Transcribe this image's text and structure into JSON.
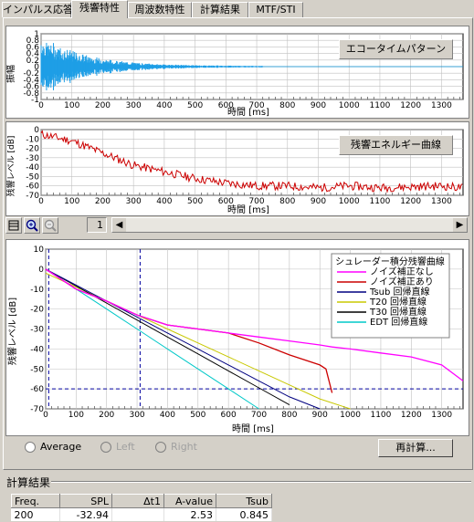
{
  "tabs": [
    {
      "label": "インパルス応答",
      "active": false
    },
    {
      "label": "残響特性",
      "active": true
    },
    {
      "label": "周波数特性",
      "active": false
    },
    {
      "label": "計算結果",
      "active": false
    },
    {
      "label": "MTF/STI",
      "active": false
    }
  ],
  "echo_chart": {
    "button_label": "エコータイムパターン",
    "ylabel": "振幅",
    "xlabel": "時間 [ms]",
    "yticks": [
      "1",
      "0.8",
      "0.6",
      "0.4",
      "0.2",
      "0",
      "-0.2",
      "-0.4",
      "-0.6",
      "-0.8",
      "-1"
    ],
    "xticks": [
      "0",
      "100",
      "200",
      "300",
      "400",
      "500",
      "600",
      "700",
      "800",
      "900",
      "1000",
      "1100",
      "1200",
      "1300"
    ]
  },
  "energy_chart": {
    "button_label": "残響エネルギー曲線",
    "ylabel": "残響レベル [dB]",
    "xlabel": "時間 [ms]",
    "yticks": [
      "0",
      "-10",
      "-20",
      "-30",
      "-40",
      "-50",
      "-60",
      "-70"
    ],
    "xticks": [
      "0",
      "100",
      "200",
      "300",
      "400",
      "500",
      "600",
      "700",
      "800",
      "900",
      "1000",
      "1100",
      "1200",
      "1300"
    ]
  },
  "toolbar": {
    "page": "1"
  },
  "decay_chart": {
    "ylabel": "残響レベル [dB]",
    "xlabel": "時間 [ms]",
    "yticks": [
      "10",
      "0",
      "-10",
      "-20",
      "-30",
      "-40",
      "-50",
      "-60",
      "-70"
    ],
    "xticks": [
      "0",
      "100",
      "200",
      "300",
      "400",
      "500",
      "600",
      "700",
      "800",
      "900",
      "1000",
      "1100",
      "1200",
      "1300"
    ],
    "legend_title": "シュレーダー積分残響曲線",
    "legend": [
      {
        "label": "ノイズ補正なし",
        "color": "#ff00ff"
      },
      {
        "label": "ノイズ補正あり",
        "color": "#cc0000"
      },
      {
        "label": "Tsub 回帰直線",
        "color": "#000080"
      },
      {
        "label": "T20 回帰直線",
        "color": "#c8c800"
      },
      {
        "label": "T30 回帰直線",
        "color": "#000000"
      },
      {
        "label": "EDT 回帰直線",
        "color": "#00c8c8"
      }
    ]
  },
  "radios": [
    {
      "label": "Average",
      "enabled": true
    },
    {
      "label": "Left",
      "enabled": false
    },
    {
      "label": "Right",
      "enabled": false
    }
  ],
  "recalc_button": "再計算...",
  "results": {
    "title": "計算結果",
    "headers": [
      "Freq.",
      "SPL",
      "Δt1",
      "A-value",
      "Tsub"
    ],
    "row": [
      "200",
      "-32.94",
      "",
      "2.53",
      "0.845"
    ]
  },
  "chart_data": [
    {
      "type": "line",
      "title": "エコータイムパターン",
      "xlabel": "時間 [ms]",
      "ylabel": "振幅",
      "xlim": [
        0,
        1370
      ],
      "ylim": [
        -1,
        1
      ],
      "series": [
        {
          "values": "decaying oscillation, amplitude ~1 at 0 ms down to ~0 by 700 ms"
        }
      ]
    },
    {
      "type": "line",
      "title": "残響エネルギー曲線",
      "xlabel": "時間 [ms]",
      "ylabel": "残響レベル [dB]",
      "xlim": [
        0,
        1370
      ],
      "ylim": [
        -70,
        0
      ],
      "x": [
        0,
        100,
        200,
        300,
        400,
        500,
        600,
        700,
        800,
        900,
        1000,
        1100,
        1200,
        1300,
        1370
      ],
      "series": [
        {
          "values": [
            -5,
            -12,
            -25,
            -38,
            -45,
            -52,
            -57,
            -60,
            -60,
            -62,
            -60,
            -62,
            -61,
            -60,
            -62
          ]
        }
      ]
    },
    {
      "type": "line",
      "title": "シュレーダー積分残響曲線",
      "xlabel": "時間 [ms]",
      "ylabel": "残響レベル [dB]",
      "xlim": [
        0,
        1370
      ],
      "ylim": [
        -70,
        10
      ],
      "x": [
        0,
        100,
        200,
        300,
        400,
        500,
        600,
        700,
        800,
        900,
        920,
        940,
        1000,
        1100,
        1200,
        1300,
        1370
      ],
      "series": [
        {
          "name": "ノイズ補正なし",
          "values": [
            0,
            -10,
            -16,
            -23,
            -28,
            -30,
            -32,
            -34,
            -36,
            -38,
            -38.5,
            -39,
            -40,
            -42,
            -44,
            -48,
            -56
          ]
        },
        {
          "name": "ノイズ補正あり",
          "values": [
            0,
            -10,
            -16,
            -23,
            -28,
            -30,
            -32,
            -37,
            -43,
            -48,
            -50,
            -62,
            null,
            null,
            null,
            null,
            null
          ]
        },
        {
          "name": "Tsub 回帰直線",
          "values": [
            0,
            -8,
            -16,
            -24,
            -32,
            -40,
            -48,
            -56,
            -64,
            -70,
            null,
            null,
            null,
            null,
            null,
            null,
            null
          ]
        },
        {
          "name": "T20 回帰直線",
          "values": [
            -2,
            -9,
            -16,
            -23,
            -30,
            -37,
            -44,
            -51,
            -58,
            -65,
            null,
            null,
            -70,
            null,
            null,
            null,
            null
          ]
        },
        {
          "name": "T30 回帰直線",
          "values": [
            0,
            -8.5,
            -17,
            -25.5,
            -34,
            -42.5,
            -51,
            -59.5,
            -68,
            null,
            null,
            null,
            null,
            null,
            null,
            null,
            null
          ]
        },
        {
          "name": "EDT 回帰直線",
          "values": [
            0,
            -10,
            -20,
            -30,
            -40,
            -50,
            -60,
            -70,
            null,
            null,
            null,
            null,
            null,
            null,
            null,
            null,
            null
          ]
        }
      ],
      "hlines": [
        -60
      ],
      "vlines": [
        10,
        310
      ]
    }
  ]
}
